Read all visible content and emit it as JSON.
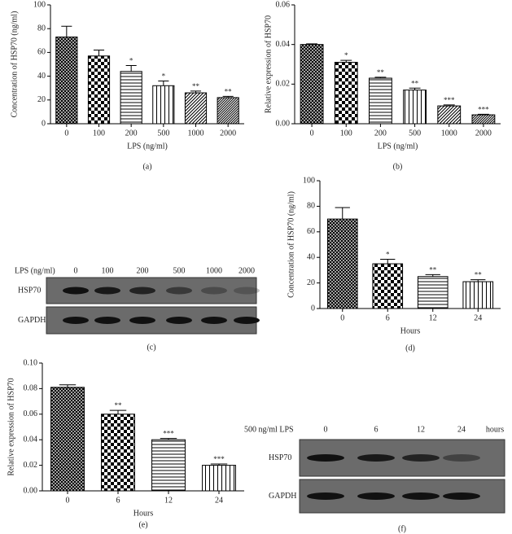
{
  "chart_data": [
    {
      "type": "bar",
      "panel": "(a)",
      "ylabel": "Concentration of HSP70 (ng/ml)",
      "xlabel": "LPS (ng/ml)",
      "categories": [
        "0",
        "100",
        "200",
        "500",
        "1000",
        "2000"
      ],
      "values": [
        73,
        57,
        44,
        32,
        26,
        22
      ],
      "errors": [
        9,
        5,
        5,
        4,
        1.5,
        1
      ],
      "annotations": [
        null,
        null,
        "*",
        "*",
        "**",
        "**"
      ],
      "color": "#000000",
      "ylim": [
        0,
        100
      ],
      "yticks": [
        0,
        20,
        40,
        60,
        80,
        100
      ]
    },
    {
      "type": "bar",
      "panel": "(b)",
      "ylabel": "Relative expression of HSP70",
      "xlabel": "LPS (ng/ml)",
      "categories": [
        "0",
        "100",
        "200",
        "500",
        "1000",
        "2000"
      ],
      "values": [
        0.04,
        0.031,
        0.023,
        0.017,
        0.009,
        0.0045
      ],
      "errors": [
        0.0003,
        0.001,
        0.0005,
        0.001,
        0.0005,
        0.0003
      ],
      "annotations": [
        null,
        "*",
        "**",
        "**",
        "***",
        "***"
      ],
      "color": "#000000",
      "ylim": [
        0,
        0.06
      ],
      "yticks": [
        {
          "value": 0,
          "label": "0.00"
        },
        {
          "value": 0.02,
          "label": "0.02"
        },
        {
          "value": 0.04,
          "label": "0.04"
        },
        {
          "value": 0.06,
          "label": "0.06"
        }
      ]
    },
    {
      "type": "bar",
      "panel": "(d)",
      "ylabel": "Concentration of HSP70 (ng/ml)",
      "xlabel": "Hours",
      "categories": [
        "0",
        "6",
        "12",
        "24"
      ],
      "values": [
        70,
        35,
        25,
        21
      ],
      "errors": [
        9,
        3.5,
        1.5,
        1.5
      ],
      "annotations": [
        null,
        "*",
        "**",
        "**"
      ],
      "color": "#000000",
      "ylim": [
        0,
        100
      ],
      "yticks": [
        0,
        20,
        40,
        60,
        80,
        100
      ]
    },
    {
      "type": "bar",
      "panel": "(e)",
      "ylabel": "Relative expression of HSP70",
      "xlabel": "Hours",
      "categories": [
        "0",
        "6",
        "12",
        "24"
      ],
      "values": [
        0.081,
        0.06,
        0.04,
        0.02
      ],
      "errors": [
        0.002,
        0.003,
        0.001,
        0.001
      ],
      "annotations": [
        null,
        "**",
        "***",
        "***"
      ],
      "color": "#000000",
      "ylim": [
        0,
        0.1
      ],
      "yticks": [
        {
          "value": 0,
          "label": "0.00"
        },
        {
          "value": 0.02,
          "label": "0.02"
        },
        {
          "value": 0.04,
          "label": "0.04"
        },
        {
          "value": 0.06,
          "label": "0.06"
        },
        {
          "value": 0.08,
          "label": "0.08"
        },
        {
          "value": 0.1,
          "label": "0.10"
        }
      ]
    }
  ],
  "blots": [
    {
      "panel": "(c)",
      "header": "LPS (ng/ml)",
      "lanes": [
        "0",
        "100",
        "200",
        "500",
        "1000",
        "2000"
      ],
      "rows": [
        "HSP70",
        "GAPDH"
      ]
    },
    {
      "panel": "(f)",
      "header": "500 ng/ml LPS",
      "lanes": [
        "0",
        "6",
        "12",
        "24"
      ],
      "unit": "hours",
      "rows": [
        "HSP70",
        "GAPDH"
      ]
    }
  ]
}
